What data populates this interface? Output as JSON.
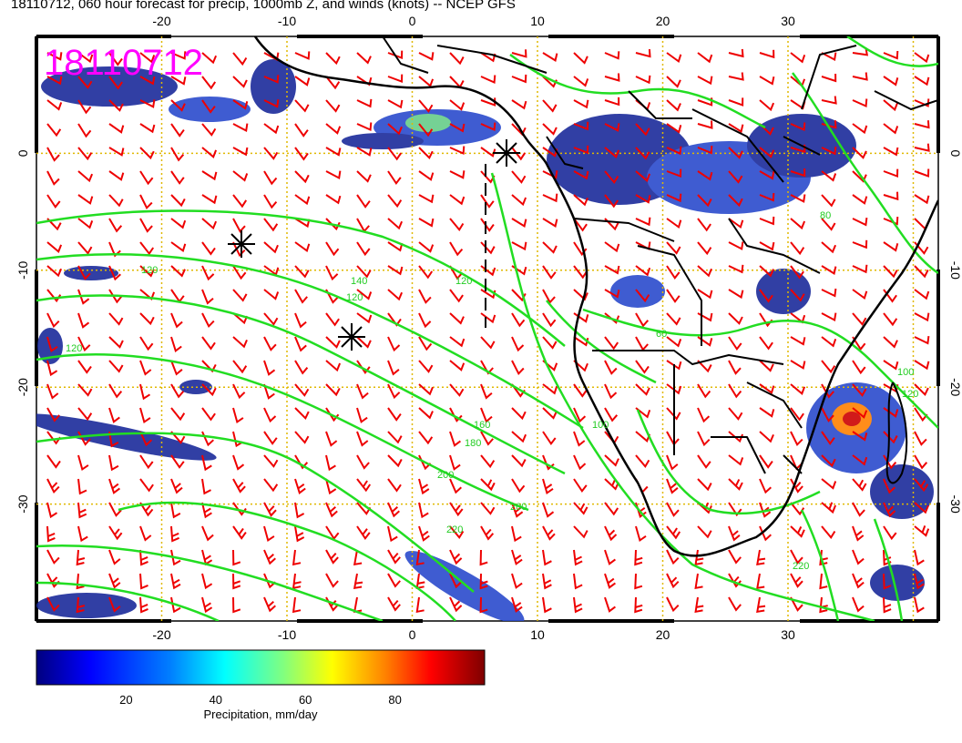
{
  "title": "18110712, 060 hour forecast for precip, 1000mb Z, and winds (knots) -- NCEP GFS",
  "stamp": "18110712",
  "map": {
    "lon_ticks": [
      "-20",
      "-10",
      "0",
      "10",
      "20",
      "30"
    ],
    "lat_ticks": [
      "0",
      "-10",
      "-20",
      "-30"
    ]
  },
  "contour_labels": [
    "120",
    "120",
    "120",
    "120",
    "140",
    "160",
    "180",
    "200",
    "200",
    "220",
    "220",
    "100",
    "100",
    "120",
    "60",
    "80"
  ],
  "colorbar": {
    "ticks": [
      "20",
      "40",
      "60",
      "80"
    ],
    "label": "Precipitation, mm/day",
    "colors": [
      "#00007f",
      "#0000ff",
      "#0080ff",
      "#00ffff",
      "#80ff80",
      "#ffff00",
      "#ff8000",
      "#ff0000",
      "#7f0000"
    ]
  },
  "colors": {
    "contour": "#22dd22",
    "barb": "#ee0000",
    "coast": "#000000",
    "grid": "#e0b800",
    "precip_dark": "#1a2a9a",
    "precip_mid": "#3366dd"
  }
}
